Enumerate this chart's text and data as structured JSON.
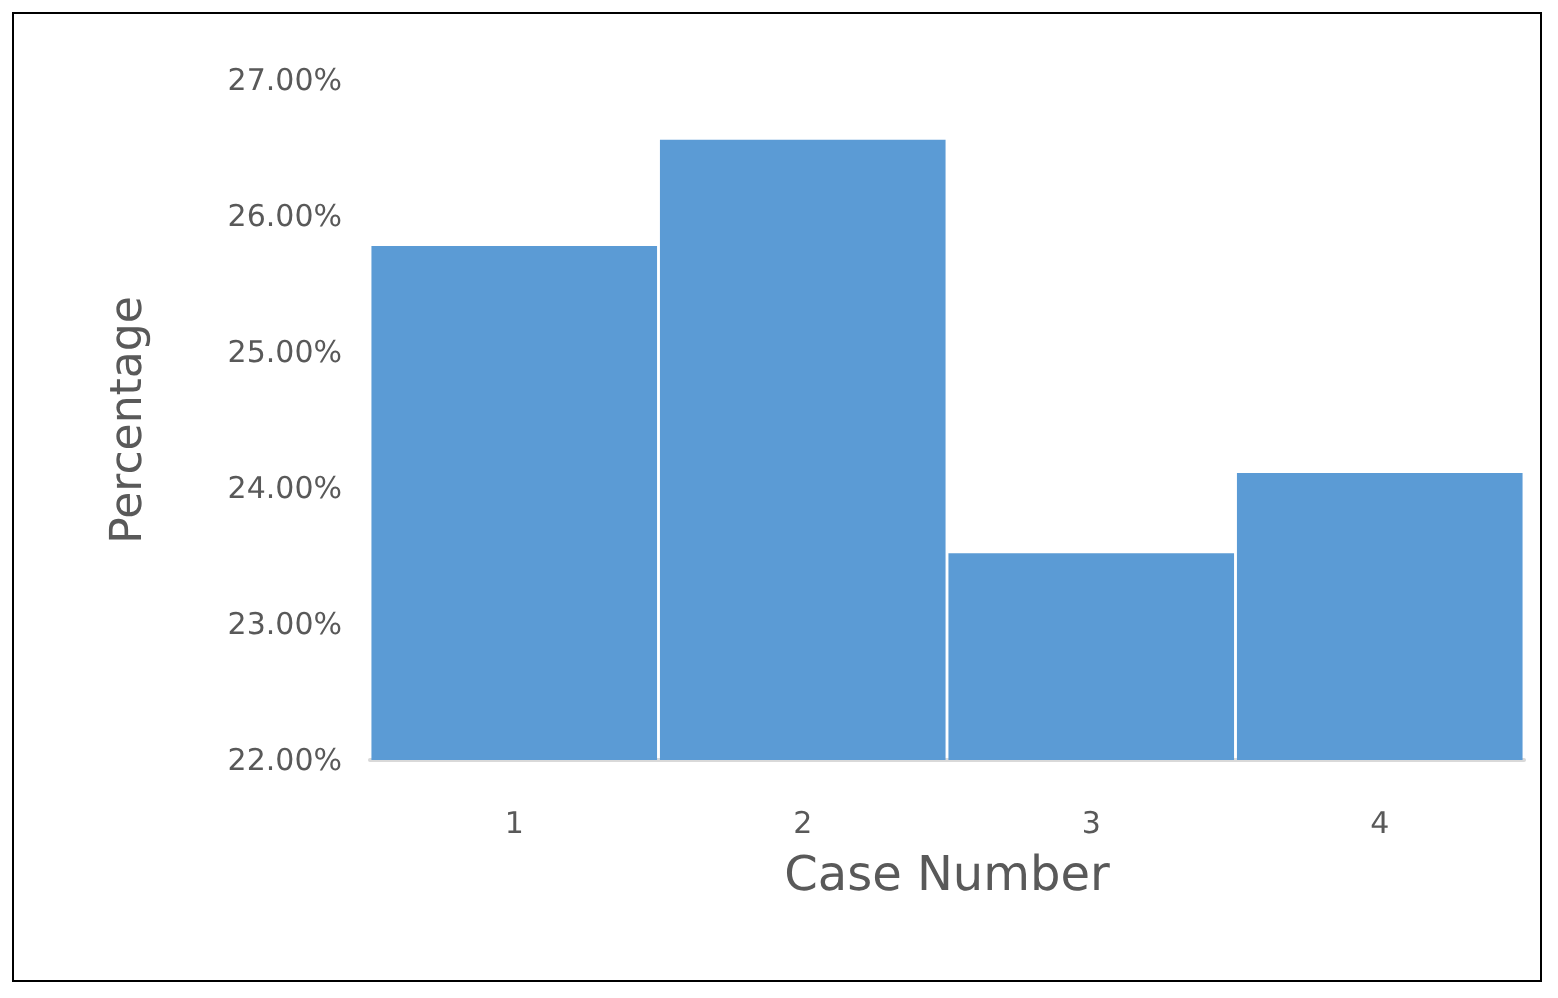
{
  "chart_data": {
    "type": "bar",
    "xlabel": "Case Number",
    "ylabel": "Percentage",
    "categories": [
      "1",
      "2",
      "3",
      "4"
    ],
    "values": [
      25.78,
      26.56,
      23.52,
      24.11
    ],
    "color": "#5b9bd5",
    "ylim": [
      22,
      27
    ],
    "yticks": [
      {
        "value": 22,
        "label": "22.00%"
      },
      {
        "value": 23,
        "label": "23.00%"
      },
      {
        "value": 24,
        "label": "24.00%"
      },
      {
        "value": 25,
        "label": "25.00%"
      },
      {
        "value": 26,
        "label": "26.00%"
      },
      {
        "value": 27,
        "label": "27.00%"
      }
    ],
    "grid": false
  }
}
